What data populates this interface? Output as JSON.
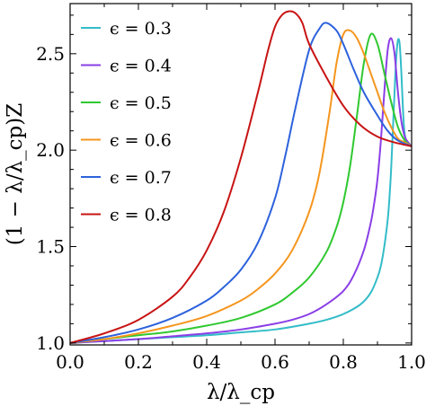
{
  "chart_data": {
    "type": "line",
    "xlabel": "λ/λ_cp",
    "ylabel": "(1 − λ/λ_cp)Z",
    "xlim": [
      0.0,
      1.0
    ],
    "ylim": [
      0.99,
      2.76
    ],
    "xticks": [
      0.0,
      0.2,
      0.4,
      0.6,
      0.8,
      1.0
    ],
    "xtick_labels": [
      "0.0",
      "0.2",
      "0.4",
      "0.6",
      "0.8",
      "1.0"
    ],
    "yticks": [
      1.0,
      1.5,
      2.0,
      2.5
    ],
    "ytick_labels": [
      "1.0",
      "1.5",
      "2.0",
      "2.5"
    ],
    "grid": false,
    "legend_position": "top-left",
    "series": [
      {
        "name": "ϵ = 0.3",
        "color": "#33bcc8",
        "x": [
          0.0,
          0.1,
          0.2,
          0.3,
          0.4,
          0.5,
          0.6,
          0.7,
          0.75,
          0.8,
          0.85,
          0.88,
          0.9,
          0.91,
          0.92,
          0.93,
          0.935,
          0.94,
          0.945,
          0.95,
          0.955,
          0.96,
          0.965,
          0.97,
          0.975,
          0.98,
          0.99,
          1.0
        ],
        "y": [
          1.0,
          1.01,
          1.02,
          1.03,
          1.04,
          1.055,
          1.07,
          1.1,
          1.12,
          1.15,
          1.2,
          1.26,
          1.34,
          1.4,
          1.5,
          1.64,
          1.75,
          1.9,
          2.1,
          2.3,
          2.48,
          2.57,
          2.55,
          2.4,
          2.2,
          2.08,
          2.03,
          2.02
        ]
      },
      {
        "name": "ϵ = 0.4",
        "color": "#8a3fe6",
        "x": [
          0.0,
          0.1,
          0.2,
          0.3,
          0.4,
          0.5,
          0.6,
          0.65,
          0.7,
          0.75,
          0.8,
          0.83,
          0.86,
          0.88,
          0.89,
          0.9,
          0.91,
          0.92,
          0.93,
          0.94,
          0.95,
          0.96,
          0.97,
          0.98,
          0.99,
          1.0
        ],
        "y": [
          1.0,
          1.01,
          1.02,
          1.035,
          1.05,
          1.07,
          1.1,
          1.12,
          1.15,
          1.2,
          1.27,
          1.35,
          1.48,
          1.62,
          1.72,
          1.85,
          2.05,
          2.3,
          2.52,
          2.58,
          2.5,
          2.3,
          2.15,
          2.07,
          2.04,
          2.02
        ]
      },
      {
        "name": "ϵ = 0.5",
        "color": "#30c830",
        "x": [
          0.0,
          0.1,
          0.2,
          0.3,
          0.4,
          0.5,
          0.6,
          0.65,
          0.7,
          0.75,
          0.78,
          0.8,
          0.82,
          0.84,
          0.86,
          0.88,
          0.9,
          0.92,
          0.94,
          0.96,
          0.98,
          1.0
        ],
        "y": [
          1.0,
          1.02,
          1.04,
          1.06,
          1.09,
          1.13,
          1.2,
          1.26,
          1.34,
          1.47,
          1.6,
          1.73,
          1.92,
          2.18,
          2.45,
          2.6,
          2.55,
          2.4,
          2.25,
          2.12,
          2.05,
          2.02
        ]
      },
      {
        "name": "ϵ = 0.6",
        "color": "#f5961e",
        "x": [
          0.0,
          0.1,
          0.2,
          0.3,
          0.4,
          0.5,
          0.55,
          0.6,
          0.65,
          0.7,
          0.73,
          0.76,
          0.78,
          0.8,
          0.82,
          0.84,
          0.86,
          0.88,
          0.9,
          0.92,
          0.94,
          0.96,
          0.98,
          1.0
        ],
        "y": [
          1.0,
          1.02,
          1.05,
          1.09,
          1.14,
          1.22,
          1.28,
          1.36,
          1.48,
          1.68,
          1.88,
          2.2,
          2.45,
          2.6,
          2.62,
          2.58,
          2.5,
          2.4,
          2.3,
          2.2,
          2.12,
          2.06,
          2.04,
          2.02
        ]
      },
      {
        "name": "ϵ = 0.7",
        "color": "#2d62dc",
        "x": [
          0.0,
          0.1,
          0.2,
          0.3,
          0.4,
          0.45,
          0.5,
          0.55,
          0.6,
          0.63,
          0.66,
          0.7,
          0.73,
          0.75,
          0.78,
          0.8,
          0.83,
          0.86,
          0.9,
          0.93,
          0.96,
          1.0
        ],
        "y": [
          1.0,
          1.03,
          1.07,
          1.13,
          1.22,
          1.29,
          1.38,
          1.52,
          1.75,
          1.97,
          2.22,
          2.52,
          2.63,
          2.66,
          2.62,
          2.55,
          2.42,
          2.3,
          2.18,
          2.1,
          2.05,
          2.02
        ]
      },
      {
        "name": "ϵ = 0.8",
        "color": "#c81414",
        "x": [
          0.0,
          0.1,
          0.2,
          0.3,
          0.35,
          0.4,
          0.45,
          0.5,
          0.55,
          0.58,
          0.6,
          0.62,
          0.64,
          0.66,
          0.68,
          0.7,
          0.75,
          0.8,
          0.85,
          0.9,
          0.95,
          1.0
        ],
        "y": [
          1.0,
          1.05,
          1.12,
          1.24,
          1.34,
          1.48,
          1.68,
          1.96,
          2.3,
          2.52,
          2.64,
          2.7,
          2.72,
          2.71,
          2.66,
          2.55,
          2.38,
          2.23,
          2.13,
          2.07,
          2.04,
          2.02
        ]
      }
    ]
  }
}
